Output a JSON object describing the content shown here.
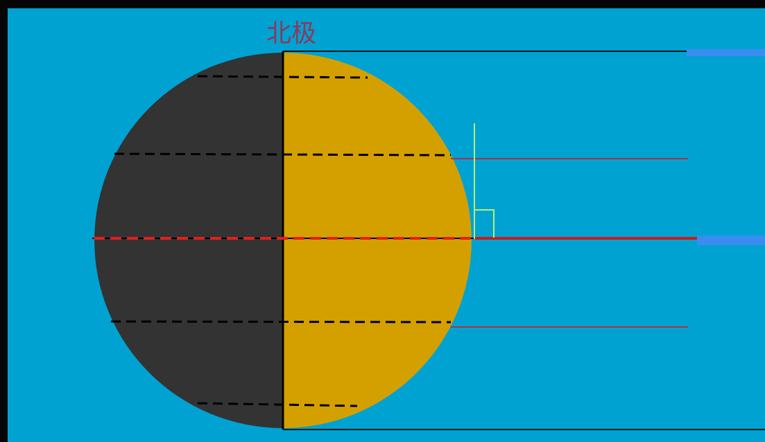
{
  "labels": {
    "north_pole": "北极"
  }
}
